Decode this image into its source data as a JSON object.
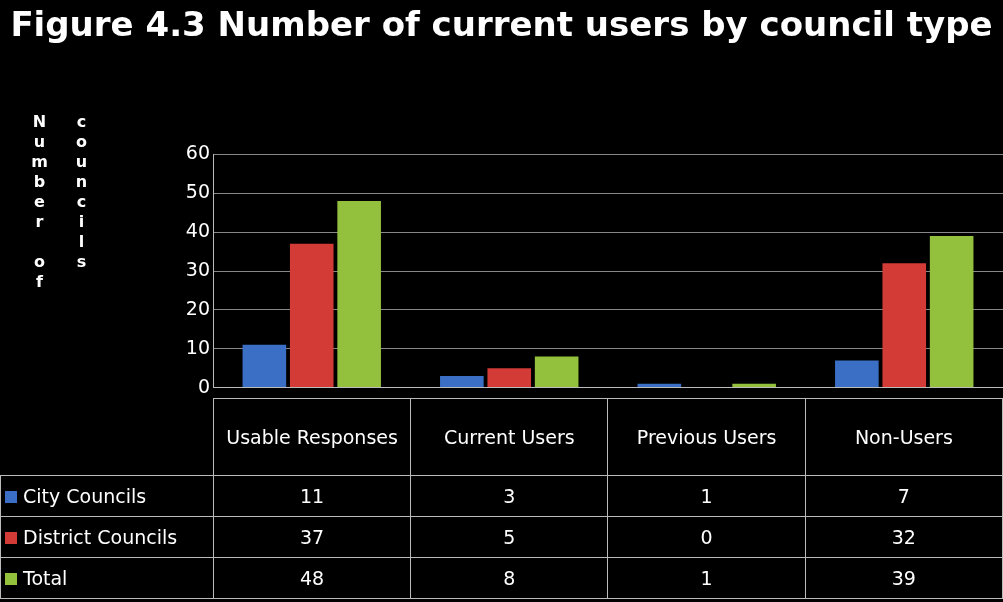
{
  "chart_data": {
    "type": "bar",
    "title": "Figure 4.3 Number of current users by council type",
    "ylabel": "Number of councils",
    "categories": [
      "Usable Responses",
      "Current Users",
      "Previous Users",
      "Non-Users"
    ],
    "series": [
      {
        "name": "City Councils",
        "color": "#3b6fc6",
        "values": [
          11,
          3,
          1,
          7
        ]
      },
      {
        "name": "District Councils",
        "color": "#d23b36",
        "values": [
          37,
          5,
          0,
          32
        ]
      },
      {
        "name": "Total",
        "color": "#93c13d",
        "values": [
          48,
          8,
          1,
          39
        ]
      }
    ],
    "ylim": [
      0,
      60
    ],
    "yticks": [
      0,
      10,
      20,
      30,
      40,
      50,
      60
    ],
    "grid": "y",
    "legend": "bottom",
    "data_labels": true
  }
}
